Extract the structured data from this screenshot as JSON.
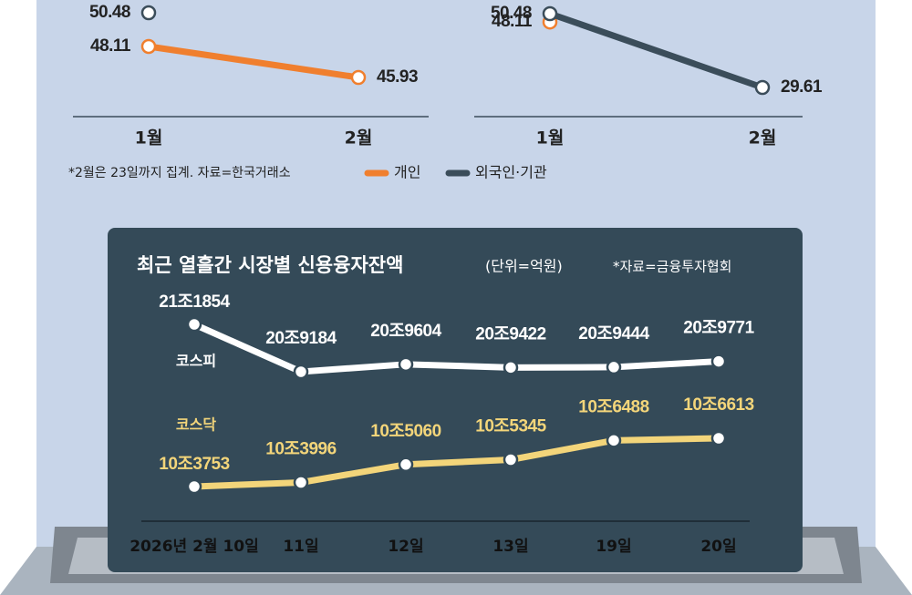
{
  "note": "*2월은 23일까지 집계. 자료=한국거래소",
  "chart_data": [
    {
      "type": "line",
      "categories": [
        "1월",
        "2월"
      ],
      "series": [
        {
          "name": "개인",
          "color": "#f07f2e",
          "values": [
            48.11,
            45.93
          ]
        },
        {
          "name": "외국인·기관",
          "color": "#3b4d5a",
          "values": [
            50.48,
            null
          ]
        }
      ]
    },
    {
      "type": "line",
      "categories": [
        "1월",
        "2월"
      ],
      "series": [
        {
          "color": "#f07f2e",
          "values": [
            48.11,
            null
          ]
        },
        {
          "color": "#3b4d5a",
          "values": [
            50.48,
            29.61
          ]
        }
      ]
    },
    {
      "type": "line",
      "title": "최근 열흘간 시장별 신용융자잔액",
      "subtitle": "(단위=억원)",
      "source": "*자료=금융투자협회",
      "categories": [
        "2026년 2월 10일",
        "11일",
        "12일",
        "13일",
        "19일",
        "20일"
      ],
      "series": [
        {
          "name": "코스피",
          "color": "#ffffff",
          "values": [
            211854,
            209184,
            209604,
            209422,
            209444,
            209771
          ],
          "value_labels": [
            "21조1854",
            "20조9184",
            "20조9604",
            "20조9422",
            "20조9444",
            "20조9771"
          ]
        },
        {
          "name": "코스닥",
          "color": "#f3d57a",
          "values": [
            103753,
            103996,
            105060,
            105345,
            106488,
            106613
          ],
          "value_labels": [
            "10조3753",
            "10조3996",
            "10조5060",
            "10조5345",
            "10조6488",
            "10조6613"
          ]
        }
      ]
    }
  ]
}
